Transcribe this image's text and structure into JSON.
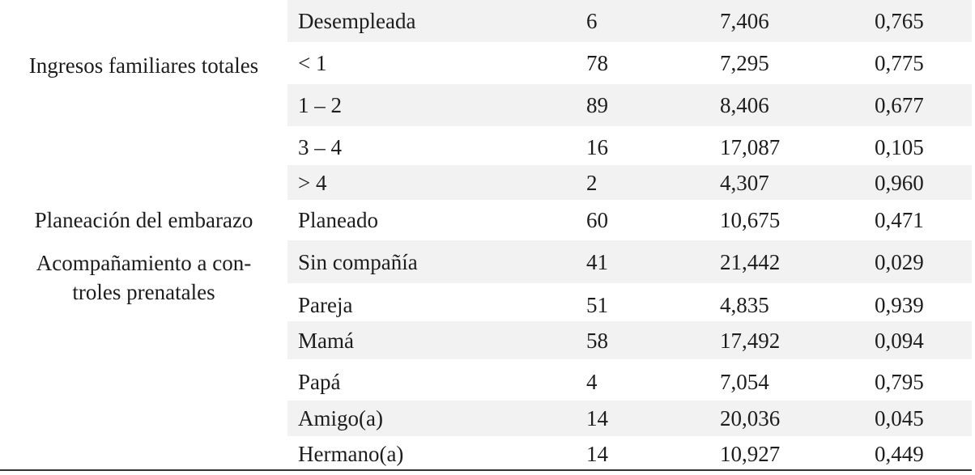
{
  "rows": [
    {
      "category": "Desempleada",
      "n": "6",
      "or": "7,406",
      "p": "0,765"
    },
    {
      "category": "< 1",
      "n": "78",
      "or": "7,295",
      "p": "0,775"
    },
    {
      "category": "1 – 2",
      "n": "89",
      "or": "8,406",
      "p": "0,677"
    },
    {
      "category": "3 – 4",
      "n": "16",
      "or": "17,087",
      "p": "0,105"
    },
    {
      "category": "> 4",
      "n": "2",
      "or": "4,307",
      "p": "0,960"
    },
    {
      "category": "Planeado",
      "n": "60",
      "or": "10,675",
      "p": "0,471"
    },
    {
      "category": "Sin compañía",
      "n": "41",
      "or": "21,442",
      "p": "0,029"
    },
    {
      "category": "Pareja",
      "n": "51",
      "or": "4,835",
      "p": "0,939"
    },
    {
      "category": "Mamá",
      "n": "58",
      "or": "17,492",
      "p": "0,094"
    },
    {
      "category": "Papá",
      "n": "4",
      "or": "7,054",
      "p": "0,795"
    },
    {
      "category": "Amigo(a)",
      "n": "14",
      "or": "20,036",
      "p": "0,045"
    },
    {
      "category": "Hermano(a)",
      "n": "14",
      "or": "10,927",
      "p": "0,449"
    }
  ],
  "groups": {
    "ingresos": "Ingresos familiares totales",
    "planeacion": "Planeación del embarazo",
    "acompanamiento_line1": "Acompañamiento a con-",
    "acompanamiento_line2": "troles prenatales"
  }
}
